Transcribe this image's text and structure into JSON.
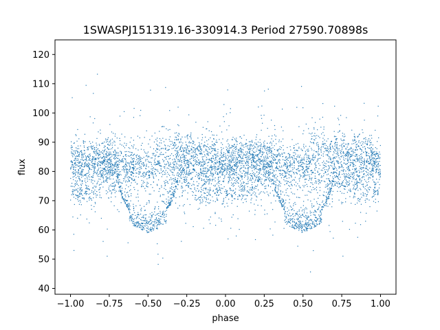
{
  "chart_data": {
    "type": "scatter",
    "title": "1SWASPJ151319.16-330914.3 Period 27590.70898s",
    "xlabel": "phase",
    "ylabel": "flux",
    "xlim": [
      -1.1,
      1.1
    ],
    "ylim": [
      38,
      125
    ],
    "x_ticks": [
      -1.0,
      -0.75,
      -0.5,
      -0.25,
      0.0,
      0.25,
      0.5,
      0.75,
      1.0
    ],
    "x_tick_labels": [
      "−1.00",
      "−0.75",
      "−0.50",
      "−0.25",
      "0.00",
      "0.25",
      "0.50",
      "0.75",
      "1.00"
    ],
    "y_ticks": [
      40,
      50,
      60,
      70,
      80,
      90,
      100,
      110,
      120
    ],
    "y_tick_labels": [
      "40",
      "50",
      "60",
      "70",
      "80",
      "90",
      "100",
      "110",
      "120"
    ],
    "grid": false,
    "legend": "none",
    "marker_color": "#1f77b4",
    "point_count_approx": 40000,
    "series_structure": [
      {
        "group": "baseline",
        "x_range": [
          -1.0,
          1.0
        ],
        "y_center": 81,
        "y_spread": 4.5
      },
      {
        "group": "upper branch",
        "x_range": [
          -1.0,
          -0.65
        ],
        "y_center": 86,
        "y_spread": 3
      },
      {
        "group": "upper branch",
        "x_range": [
          -0.45,
          -0.05
        ],
        "y_center": 88,
        "y_spread": 3
      },
      {
        "group": "upper branch",
        "x_range": [
          0.0,
          0.35
        ],
        "y_center": 86,
        "y_spread": 3
      },
      {
        "group": "upper branch",
        "x_range": [
          0.55,
          0.95
        ],
        "y_center": 88,
        "y_spread": 3
      },
      {
        "group": "lower branch",
        "x_range": [
          -1.0,
          -0.8
        ],
        "y_center": 72,
        "y_spread": 2
      },
      {
        "group": "lower branch",
        "x_range": [
          -0.2,
          0.2
        ],
        "y_center": 72,
        "y_spread": 2
      },
      {
        "group": "lower branch",
        "x_range": [
          0.8,
          1.0
        ],
        "y_center": 72,
        "y_spread": 2
      },
      {
        "group": "eclipse",
        "x_center": -0.5,
        "half_width": 0.2,
        "y_bottom": 59
      },
      {
        "group": "eclipse",
        "x_center": 0.5,
        "half_width": 0.2,
        "y_bottom": 59
      }
    ]
  }
}
